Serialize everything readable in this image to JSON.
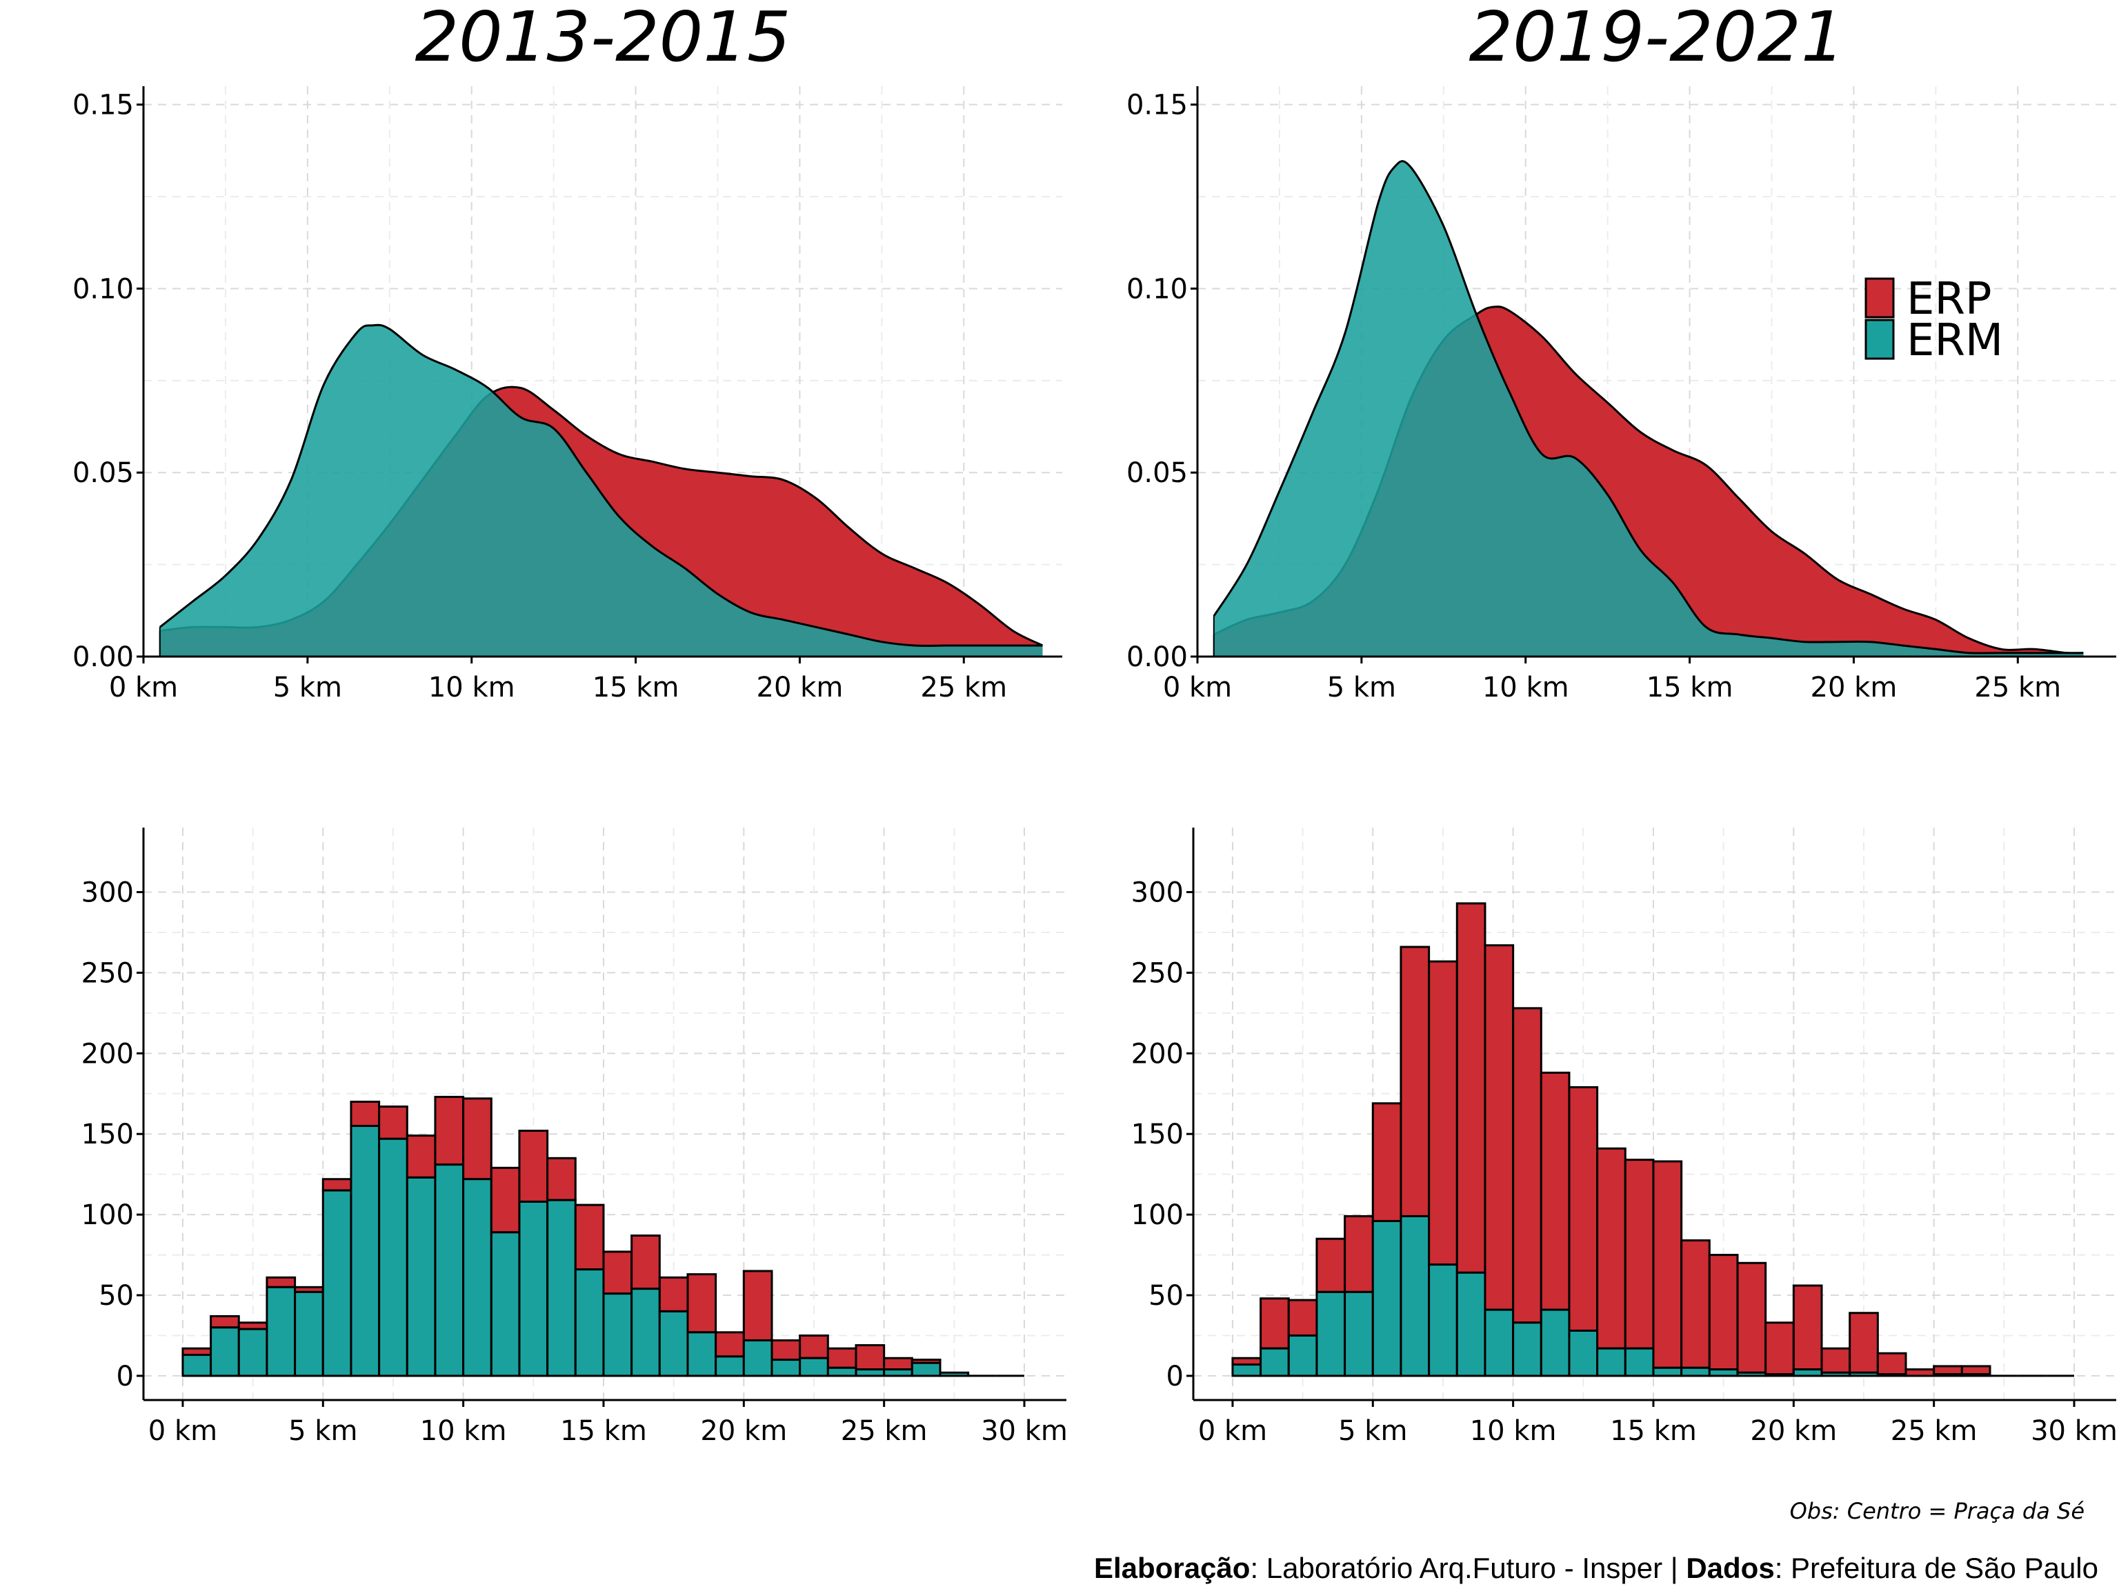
{
  "colors": {
    "erp": "#CC2C33",
    "erm": "#1BA19D",
    "overlap": "#178B88"
  },
  "legend": {
    "erp": "ERP",
    "erm": "ERM",
    "placement": "top-right of top-right panel"
  },
  "notes": {
    "obs": "Obs: Centro = Praça da Sé",
    "credit_label1": "Elaboração",
    "credit_text1": ": Laboratório Arq.Futuro - Insper | ",
    "credit_label2": "Dados",
    "credit_text2": ": Prefeitura de São Paulo"
  },
  "chart_data": [
    {
      "type": "area",
      "title": "2013-2015",
      "xlabel": "",
      "ylabel": "",
      "xlim": [
        0,
        28
      ],
      "ylim": [
        0,
        0.155
      ],
      "xticks": [
        "0 km",
        "5 km",
        "10 km",
        "15 km",
        "20 km",
        "25 km"
      ],
      "xtick_values": [
        0,
        5,
        10,
        15,
        20,
        25
      ],
      "yticks": [
        "0.00",
        "0.05",
        "0.10",
        "0.15"
      ],
      "ytick_values": [
        0,
        0.05,
        0.1,
        0.15
      ],
      "grid": true,
      "series": [
        {
          "name": "ERP",
          "x": [
            0.5,
            1.5,
            2.5,
            3.5,
            4.5,
            5.5,
            6.5,
            7.5,
            8.5,
            9.5,
            10.5,
            11.5,
            12.5,
            13.5,
            14.5,
            15.5,
            16.5,
            17.5,
            18.5,
            19.5,
            20.5,
            21.5,
            22.5,
            23.5,
            24.5,
            25.5,
            26.5,
            27.4
          ],
          "values": [
            0.007,
            0.008,
            0.008,
            0.008,
            0.01,
            0.015,
            0.025,
            0.036,
            0.048,
            0.06,
            0.071,
            0.073,
            0.067,
            0.06,
            0.055,
            0.053,
            0.051,
            0.05,
            0.049,
            0.048,
            0.043,
            0.035,
            0.028,
            0.024,
            0.02,
            0.014,
            0.007,
            0.003
          ]
        },
        {
          "name": "ERM",
          "x": [
            0.5,
            1.5,
            2.5,
            3.5,
            4.5,
            5.5,
            6.5,
            7.0,
            7.5,
            8.5,
            9.5,
            10.5,
            11.5,
            12.5,
            13.5,
            14.5,
            15.5,
            16.5,
            17.5,
            18.5,
            19.5,
            20.5,
            21.5,
            22.5,
            23.5,
            24.5,
            25.5,
            26.5,
            27.4
          ],
          "values": [
            0.008,
            0.015,
            0.022,
            0.032,
            0.048,
            0.074,
            0.088,
            0.09,
            0.089,
            0.082,
            0.078,
            0.073,
            0.065,
            0.062,
            0.05,
            0.038,
            0.03,
            0.024,
            0.017,
            0.012,
            0.01,
            0.008,
            0.006,
            0.004,
            0.003,
            0.003,
            0.003,
            0.003,
            0.003
          ]
        }
      ]
    },
    {
      "type": "area",
      "title": "2019-2021",
      "xlabel": "",
      "ylabel": "",
      "xlim": [
        0,
        28
      ],
      "ylim": [
        0,
        0.155
      ],
      "xticks": [
        "0 km",
        "5 km",
        "10 km",
        "15 km",
        "20 km",
        "25 km"
      ],
      "xtick_values": [
        0,
        5,
        10,
        15,
        20,
        25
      ],
      "yticks": [
        "0.00",
        "0.05",
        "0.10",
        "0.15"
      ],
      "ytick_values": [
        0,
        0.05,
        0.1,
        0.15
      ],
      "grid": true,
      "series": [
        {
          "name": "ERP",
          "x": [
            0.5,
            1.5,
            2.5,
            3.5,
            4.5,
            5.5,
            6.5,
            7.5,
            8.5,
            9.0,
            9.5,
            10.5,
            11.5,
            12.5,
            13.5,
            14.5,
            15.5,
            16.5,
            17.5,
            18.5,
            19.5,
            20.5,
            21.5,
            22.5,
            23.5,
            24.5,
            25.5,
            26.5,
            27.0
          ],
          "values": [
            0.006,
            0.01,
            0.012,
            0.015,
            0.025,
            0.045,
            0.07,
            0.086,
            0.093,
            0.095,
            0.094,
            0.087,
            0.077,
            0.069,
            0.061,
            0.056,
            0.052,
            0.043,
            0.034,
            0.028,
            0.021,
            0.017,
            0.013,
            0.01,
            0.005,
            0.002,
            0.002,
            0.001,
            0.001
          ]
        },
        {
          "name": "ERM",
          "x": [
            0.5,
            1.5,
            2.5,
            3.5,
            4.5,
            5.5,
            6.0,
            6.5,
            7.5,
            8.5,
            9.5,
            10.5,
            11.5,
            12.5,
            13.5,
            14.5,
            15.5,
            16.5,
            17.5,
            18.5,
            19.5,
            20.5,
            21.5,
            22.5,
            23.5,
            24.5,
            25.5,
            26.5,
            27.0
          ],
          "values": [
            0.011,
            0.025,
            0.045,
            0.066,
            0.088,
            0.123,
            0.133,
            0.133,
            0.117,
            0.093,
            0.072,
            0.055,
            0.054,
            0.044,
            0.029,
            0.02,
            0.008,
            0.006,
            0.005,
            0.004,
            0.004,
            0.004,
            0.003,
            0.002,
            0.001,
            0.001,
            0.001,
            0.001,
            0.001
          ]
        }
      ]
    },
    {
      "type": "bar",
      "stacked": true,
      "title": "",
      "xlabel": "",
      "ylabel": "",
      "xlim": [
        -1.4,
        31.5
      ],
      "ylim": [
        -15,
        340
      ],
      "xticks": [
        "0 km",
        "5 km",
        "10 km",
        "15 km",
        "20 km",
        "25 km",
        "30 km"
      ],
      "xtick_values": [
        0,
        5,
        10,
        15,
        20,
        25,
        30
      ],
      "yticks": [
        "0",
        "50",
        "100",
        "150",
        "200",
        "250",
        "300"
      ],
      "ytick_values": [
        0,
        50,
        100,
        150,
        200,
        250,
        300
      ],
      "grid": true,
      "bin_width": 1,
      "bin_starts": [
        0,
        1,
        2,
        3,
        4,
        5,
        6,
        7,
        8,
        9,
        10,
        11,
        12,
        13,
        14,
        15,
        16,
        17,
        18,
        19,
        20,
        21,
        22,
        23,
        24,
        25,
        26,
        27,
        28,
        29
      ],
      "series": [
        {
          "name": "ERM",
          "values": [
            13,
            30,
            29,
            55,
            52,
            115,
            155,
            147,
            123,
            131,
            122,
            89,
            108,
            109,
            66,
            51,
            54,
            40,
            27,
            12,
            22,
            10,
            11,
            5,
            4,
            4,
            8,
            2,
            0,
            0
          ]
        },
        {
          "name": "ERP",
          "values": [
            4,
            7,
            4,
            6,
            3,
            7,
            15,
            20,
            26,
            42,
            50,
            40,
            44,
            26,
            40,
            26,
            33,
            21,
            36,
            15,
            43,
            12,
            14,
            12,
            15,
            7,
            2,
            0,
            0,
            0
          ]
        }
      ]
    },
    {
      "type": "bar",
      "stacked": true,
      "title": "",
      "xlabel": "",
      "ylabel": "",
      "xlim": [
        -1.4,
        31.5
      ],
      "ylim": [
        -15,
        340
      ],
      "xticks": [
        "0 km",
        "5 km",
        "10 km",
        "15 km",
        "20 km",
        "25 km",
        "30 km"
      ],
      "xtick_values": [
        0,
        5,
        10,
        15,
        20,
        25,
        30
      ],
      "yticks": [
        "0",
        "50",
        "100",
        "150",
        "200",
        "250",
        "300"
      ],
      "ytick_values": [
        0,
        50,
        100,
        150,
        200,
        250,
        300
      ],
      "grid": true,
      "bin_width": 1,
      "bin_starts": [
        0,
        1,
        2,
        3,
        4,
        5,
        6,
        7,
        8,
        9,
        10,
        11,
        12,
        13,
        14,
        15,
        16,
        17,
        18,
        19,
        20,
        21,
        22,
        23,
        24,
        25,
        26,
        27,
        28,
        29
      ],
      "series": [
        {
          "name": "ERM",
          "values": [
            7,
            17,
            25,
            52,
            52,
            96,
            99,
            69,
            64,
            41,
            33,
            41,
            28,
            17,
            17,
            5,
            5,
            4,
            2,
            1,
            4,
            2,
            2,
            1,
            0,
            1,
            1,
            0,
            0,
            0
          ]
        },
        {
          "name": "ERP",
          "values": [
            4,
            31,
            22,
            33,
            47,
            73,
            167,
            188,
            229,
            226,
            195,
            147,
            151,
            124,
            117,
            128,
            79,
            71,
            68,
            32,
            52,
            15,
            37,
            13,
            4,
            5,
            5,
            0,
            0,
            0
          ]
        }
      ]
    }
  ]
}
